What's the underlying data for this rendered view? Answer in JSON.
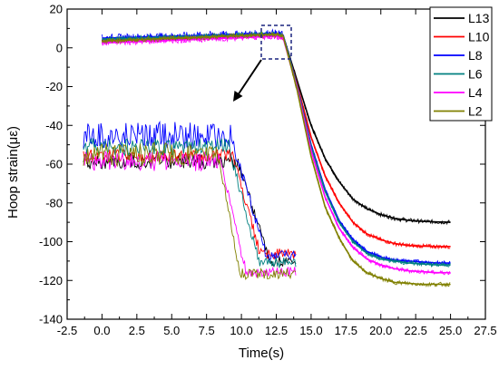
{
  "chart_data": {
    "type": "line",
    "title": "",
    "xlabel": "Time(s)",
    "ylabel": "Hoop strain(με)",
    "xlim": [
      -2.5,
      27.5
    ],
    "ylim": [
      -140,
      20
    ],
    "x_ticks": [
      -2.5,
      0.0,
      2.5,
      5.0,
      7.5,
      10.0,
      12.5,
      15.0,
      17.5,
      20.0,
      22.5,
      25.0,
      27.5
    ],
    "x_tick_labels": [
      "-2.5",
      "0.0",
      "2.5",
      "5.0",
      "7.5",
      "10.0",
      "12.5",
      "15.0",
      "17.5",
      "20.0",
      "22.5",
      "25.0",
      "27.5"
    ],
    "y_ticks": [
      -140,
      -120,
      -100,
      -80,
      -60,
      -40,
      -20,
      0,
      20
    ],
    "y_tick_labels": [
      "-140",
      "-120",
      "-100",
      "-80",
      "-60",
      "-40",
      "-20",
      "0",
      "20"
    ],
    "grid": false,
    "legend_position": "top-right",
    "series": [
      {
        "name": "L13",
        "color": "#000000",
        "x": [
          0,
          2.5,
          5,
          7.5,
          10,
          12.5,
          13.0,
          14,
          15,
          16,
          17,
          18,
          19,
          20,
          21,
          22,
          23,
          24,
          25
        ],
        "y": [
          4,
          4.6,
          5.2,
          5.8,
          6.4,
          7,
          6,
          -17,
          -40,
          -57,
          -69,
          -78,
          -83,
          -86,
          -88,
          -89,
          -89.5,
          -89.8,
          -90
        ]
      },
      {
        "name": "L10",
        "color": "#ff0000",
        "x": [
          0,
          2.5,
          5,
          7.5,
          10,
          12.5,
          13.0,
          14,
          15,
          16,
          17,
          18,
          19,
          20,
          21,
          22,
          23,
          24,
          25
        ],
        "y": [
          3.5,
          4.1,
          4.7,
          5.3,
          5.9,
          6.5,
          5.5,
          -19,
          -46,
          -66,
          -80,
          -90,
          -96,
          -99,
          -101,
          -102,
          -102.3,
          -102.5,
          -102.5
        ]
      },
      {
        "name": "L8",
        "color": "#0000ff",
        "x": [
          0,
          2.5,
          5,
          7.5,
          10,
          12.5,
          13.0,
          14,
          15,
          16,
          17,
          18,
          19,
          20,
          21,
          22,
          23,
          24,
          25
        ],
        "y": [
          5,
          5.5,
          6,
          6.5,
          7,
          7.5,
          6.5,
          -20,
          -50,
          -73,
          -89,
          -99,
          -105,
          -108,
          -109.5,
          -110,
          -110.5,
          -111,
          -111
        ]
      },
      {
        "name": "L6",
        "color": "#008080",
        "x": [
          0,
          2.5,
          5,
          7.5,
          10,
          12.5,
          13.0,
          14,
          15,
          16,
          17,
          18,
          19,
          20,
          21,
          22,
          23,
          24,
          25
        ],
        "y": [
          4.5,
          5,
          5.5,
          6,
          6.5,
          7,
          6,
          -20,
          -51,
          -74,
          -90,
          -100,
          -106,
          -109,
          -110,
          -111,
          -111.5,
          -112,
          -112
        ]
      },
      {
        "name": "L4",
        "color": "#ff00ff",
        "x": [
          0,
          2.5,
          5,
          7.5,
          10,
          12.5,
          13.0,
          14,
          15,
          16,
          17,
          18,
          19,
          20,
          21,
          22,
          23,
          24,
          25
        ],
        "y": [
          2.5,
          3.2,
          3.9,
          4.6,
          5.3,
          6,
          5,
          -21,
          -53,
          -77,
          -93,
          -103,
          -109,
          -112,
          -114,
          -115,
          -115.5,
          -116,
          -116
        ]
      },
      {
        "name": "L2",
        "color": "#808000",
        "x": [
          0,
          2.5,
          5,
          7.5,
          10,
          12.5,
          13.0,
          14,
          15,
          16,
          17,
          18,
          19,
          20,
          21,
          22,
          23,
          24,
          25
        ],
        "y": [
          3.5,
          4.2,
          4.9,
          5.6,
          6.3,
          7,
          6,
          -22,
          -56,
          -82,
          -98,
          -110,
          -116,
          -119,
          -121,
          -121.5,
          -122,
          -122,
          -122
        ]
      }
    ]
  }
}
